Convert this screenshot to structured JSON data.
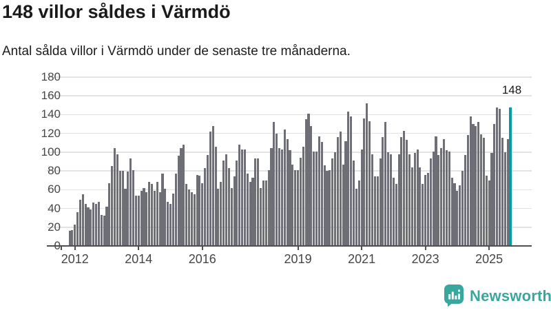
{
  "header": {
    "title": "148 villor såldes i Värmdö",
    "subtitle": "Antal sålda villor i Värmdö under de senaste tre månaderna."
  },
  "chart_data": {
    "type": "bar",
    "title": "148 villor såldes i Värmdö",
    "subtitle": "Antal sålda villor i Värmdö under de senaste tre månaderna.",
    "xlabel": "",
    "ylabel": "",
    "ylim": [
      0,
      180
    ],
    "ytick_step": 20,
    "grid": true,
    "frequency": "monthly",
    "start_month": "2011-11",
    "end_month": "2025-09",
    "values": [
      16,
      17,
      23,
      36,
      49,
      55,
      45,
      41,
      39,
      46,
      45,
      47,
      33,
      32,
      42,
      67,
      85,
      104,
      98,
      80,
      80,
      61,
      79,
      93,
      81,
      54,
      54,
      59,
      62,
      57,
      68,
      66,
      59,
      68,
      57,
      77,
      61,
      47,
      45,
      56,
      77,
      96,
      104,
      108,
      66,
      60,
      57,
      55,
      76,
      75,
      67,
      83,
      97,
      122,
      128,
      106,
      61,
      68,
      91,
      98,
      83,
      62,
      74,
      91,
      108,
      103,
      103,
      77,
      68,
      73,
      93,
      93,
      62,
      70,
      70,
      81,
      104,
      132,
      120,
      104,
      103,
      124,
      114,
      102,
      87,
      81,
      81,
      94,
      106,
      135,
      141,
      128,
      101,
      101,
      117,
      111,
      86,
      80,
      81,
      93,
      100,
      116,
      122,
      87,
      112,
      143,
      138,
      91,
      61,
      70,
      103,
      136,
      152,
      133,
      98,
      74,
      74,
      93,
      116,
      132,
      100,
      98,
      73,
      66,
      98,
      116,
      123,
      113,
      98,
      84,
      99,
      103,
      84,
      66,
      76,
      78,
      93,
      101,
      117,
      97,
      104,
      114,
      102,
      101,
      73,
      67,
      59,
      65,
      80,
      97,
      118,
      138,
      130,
      128,
      132,
      119,
      115,
      75,
      70,
      99,
      130,
      148,
      146,
      115,
      100,
      114,
      148
    ],
    "bar_color": "#6e6e76",
    "highlight": {
      "index": 166,
      "value": 148,
      "label": "148",
      "color": "#009f9f"
    },
    "xticks": [
      {
        "label": "2012",
        "month_index": 2
      },
      {
        "label": "2014",
        "month_index": 26
      },
      {
        "label": "2016",
        "month_index": 50
      },
      {
        "label": "2019",
        "month_index": 86
      },
      {
        "label": "2021",
        "month_index": 110
      },
      {
        "label": "2023",
        "month_index": 134
      },
      {
        "label": "2025",
        "month_index": 158
      }
    ],
    "legend": null
  },
  "footer": {
    "brand": "Newsworthy",
    "brand_color": "#3aa79e",
    "logo_icon": "bar-chart-speech-bubble-icon"
  }
}
